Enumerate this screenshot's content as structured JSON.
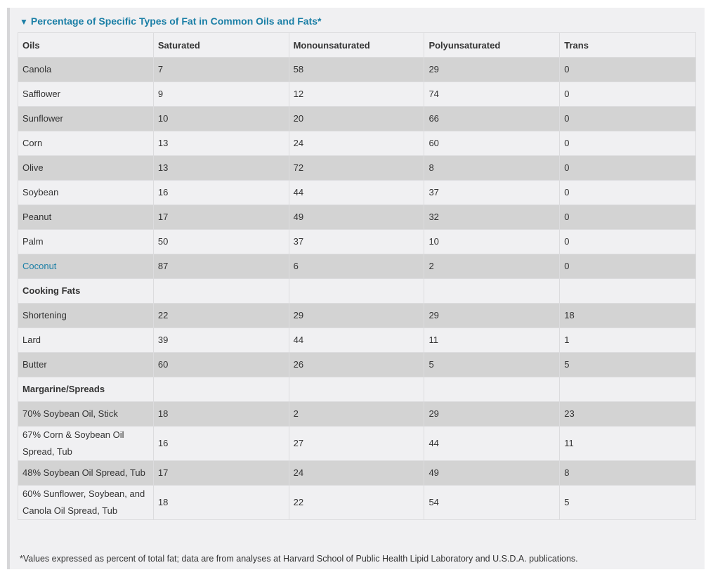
{
  "title": "Percentage of Specific Types of Fat in Common Oils and Fats*",
  "icons": {
    "collapse": "triangle-down-icon"
  },
  "colors": {
    "accent": "#1b7fa6",
    "stripe": "#d3d3d3",
    "background": "#f0f0f2"
  },
  "columns": [
    "Oils",
    "Saturated",
    "Monounsaturated",
    "Polyunsaturated",
    "Trans"
  ],
  "rows": [
    {
      "type": "data",
      "cells": [
        "Canola",
        "7",
        "58",
        "29",
        "0"
      ]
    },
    {
      "type": "data",
      "cells": [
        "Safflower",
        "9",
        "12",
        "74",
        "0"
      ]
    },
    {
      "type": "data",
      "cells": [
        "Sunflower",
        "10",
        "20",
        "66",
        "0"
      ]
    },
    {
      "type": "data",
      "cells": [
        "Corn",
        "13",
        "24",
        "60",
        "0"
      ]
    },
    {
      "type": "data",
      "cells": [
        "Olive",
        "13",
        "72",
        "8",
        "0"
      ]
    },
    {
      "type": "data",
      "cells": [
        "Soybean",
        "16",
        "44",
        "37",
        "0"
      ]
    },
    {
      "type": "data",
      "cells": [
        "Peanut",
        "17",
        "49",
        "32",
        "0"
      ]
    },
    {
      "type": "data",
      "cells": [
        "Palm",
        "50",
        "37",
        "10",
        "0"
      ]
    },
    {
      "type": "link",
      "cells": [
        "Coconut",
        "87",
        "6",
        "2",
        "0"
      ]
    },
    {
      "type": "section",
      "cells": [
        "Cooking Fats",
        "",
        "",
        "",
        ""
      ]
    },
    {
      "type": "data",
      "cells": [
        "Shortening",
        "22",
        "29",
        "29",
        "18"
      ]
    },
    {
      "type": "data",
      "cells": [
        "Lard",
        "39",
        "44",
        "11",
        "1"
      ]
    },
    {
      "type": "data",
      "cells": [
        "Butter",
        "60",
        "26",
        "5",
        "5"
      ]
    },
    {
      "type": "section",
      "cells": [
        "Margarine/Spreads",
        "",
        "",
        "",
        ""
      ]
    },
    {
      "type": "data",
      "cells": [
        "70% Soybean Oil, Stick",
        "18",
        "2",
        "29",
        "23"
      ]
    },
    {
      "type": "data",
      "cells": [
        "67% Corn & Soybean Oil Spread, Tub",
        "16",
        "27",
        "44",
        "11"
      ]
    },
    {
      "type": "data",
      "cells": [
        "48% Soybean Oil Spread, Tub",
        "17",
        "24",
        "49",
        "8"
      ]
    },
    {
      "type": "data",
      "cells": [
        "60% Sunflower, Soybean, and Canola Oil Spread, Tub",
        "18",
        "22",
        "54",
        "5"
      ]
    }
  ],
  "footnote": "*Values expressed as percent of total fat; data are from analyses at Harvard School of Public Health Lipid Laboratory and U.S.D.A. publications."
}
